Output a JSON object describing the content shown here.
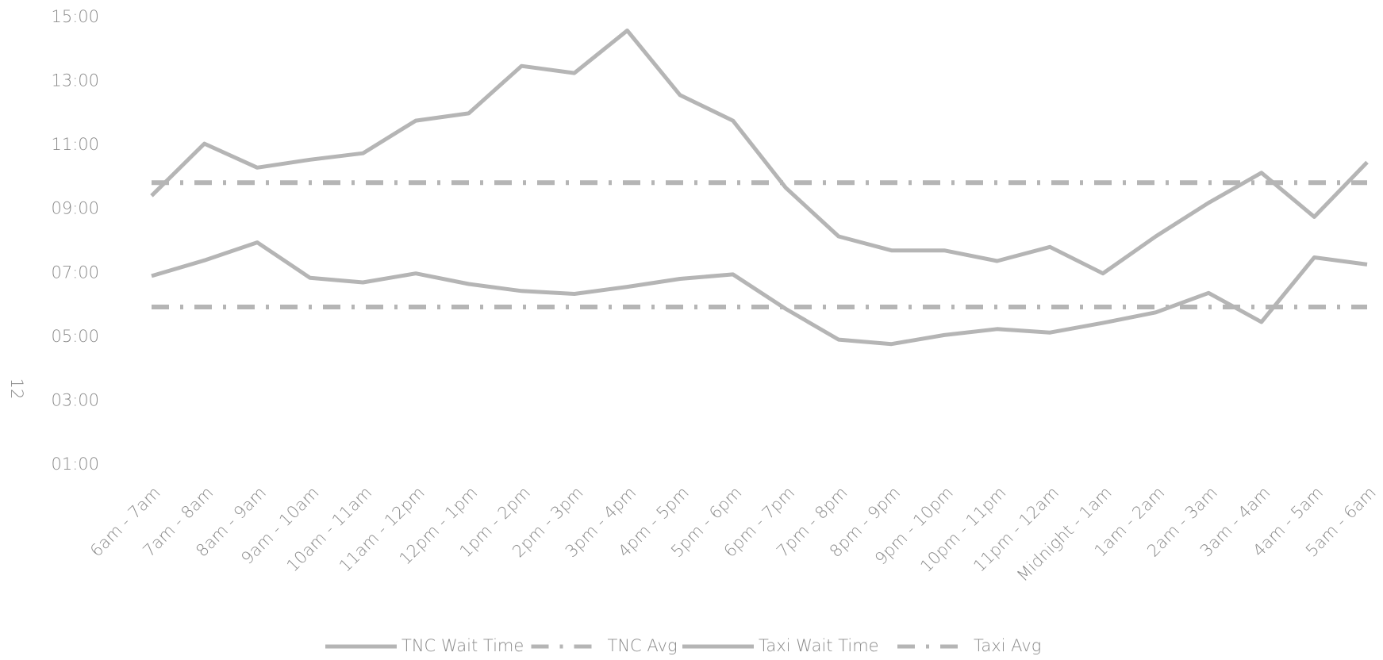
{
  "page_number": "12",
  "chart_data": {
    "type": "line",
    "categories": [
      "6am - 7am",
      "7am - 8am",
      "8am - 9am",
      "9am - 10am",
      "10am - 11am",
      "11am - 12pm",
      "12pm - 1pm",
      "1pm - 2pm",
      "2pm - 3pm",
      "3pm - 4pm",
      "4pm - 5pm",
      "5pm - 6pm",
      "6pm - 7pm",
      "7pm - 8pm",
      "8pm - 9pm",
      "9pm - 10pm",
      "10pm - 11pm",
      "11pm - 12am",
      "Midnight - 1am",
      "1am - 2am",
      "2am - 3am",
      "3am - 4am",
      "4am - 5am",
      "5am - 6am"
    ],
    "series": [
      {
        "name": "TNC Wait Time",
        "color": "#b5b5b5",
        "style": "solid",
        "values": [
          6.91,
          7.4,
          7.96,
          6.85,
          6.71,
          6.99,
          6.66,
          6.44,
          6.35,
          6.57,
          6.82,
          6.96,
          5.88,
          4.92,
          4.78,
          5.06,
          5.25,
          5.14,
          5.44,
          5.77,
          6.38,
          5.47,
          7.49,
          7.27
        ]
      },
      {
        "name": "TNC Avg",
        "color": "#b5b5b5",
        "style": "dashdot",
        "values": [
          5.94,
          5.94,
          5.94,
          5.94,
          5.94,
          5.94,
          5.94,
          5.94,
          5.94,
          5.94,
          5.94,
          5.94,
          5.94,
          5.94,
          5.94,
          5.94,
          5.94,
          5.94,
          5.94,
          5.94,
          5.94,
          5.94,
          5.94,
          5.94
        ]
      },
      {
        "name": "Taxi Wait Time",
        "color": "#b5b5b5",
        "style": "solid",
        "values": [
          9.42,
          11.05,
          10.3,
          10.55,
          10.75,
          11.77,
          12.0,
          13.48,
          13.26,
          14.59,
          12.57,
          11.77,
          9.67,
          8.15,
          7.71,
          7.71,
          7.38,
          7.82,
          6.99,
          8.15,
          9.2,
          10.14,
          8.76,
          10.47
        ]
      },
      {
        "name": "Taxi Avg",
        "color": "#b5b5b5",
        "style": "dashdot",
        "values": [
          9.83,
          9.83,
          9.83,
          9.83,
          9.83,
          9.83,
          9.83,
          9.83,
          9.83,
          9.83,
          9.83,
          9.83,
          9.83,
          9.83,
          9.83,
          9.83,
          9.83,
          9.83,
          9.83,
          9.83,
          9.83,
          9.83,
          9.83,
          9.83
        ]
      }
    ],
    "ylim": [
      1,
      15
    ],
    "yticks": [
      {
        "value": 1,
        "label": "01:00"
      },
      {
        "value": 3,
        "label": "03:00"
      },
      {
        "value": 5,
        "label": "05:00"
      },
      {
        "value": 7,
        "label": "07:00"
      },
      {
        "value": 9,
        "label": "09:00"
      },
      {
        "value": 11,
        "label": "11:00"
      },
      {
        "value": 13,
        "label": "13:00"
      },
      {
        "value": 15,
        "label": "15:00"
      }
    ],
    "grid": false,
    "legend": "bottom"
  }
}
